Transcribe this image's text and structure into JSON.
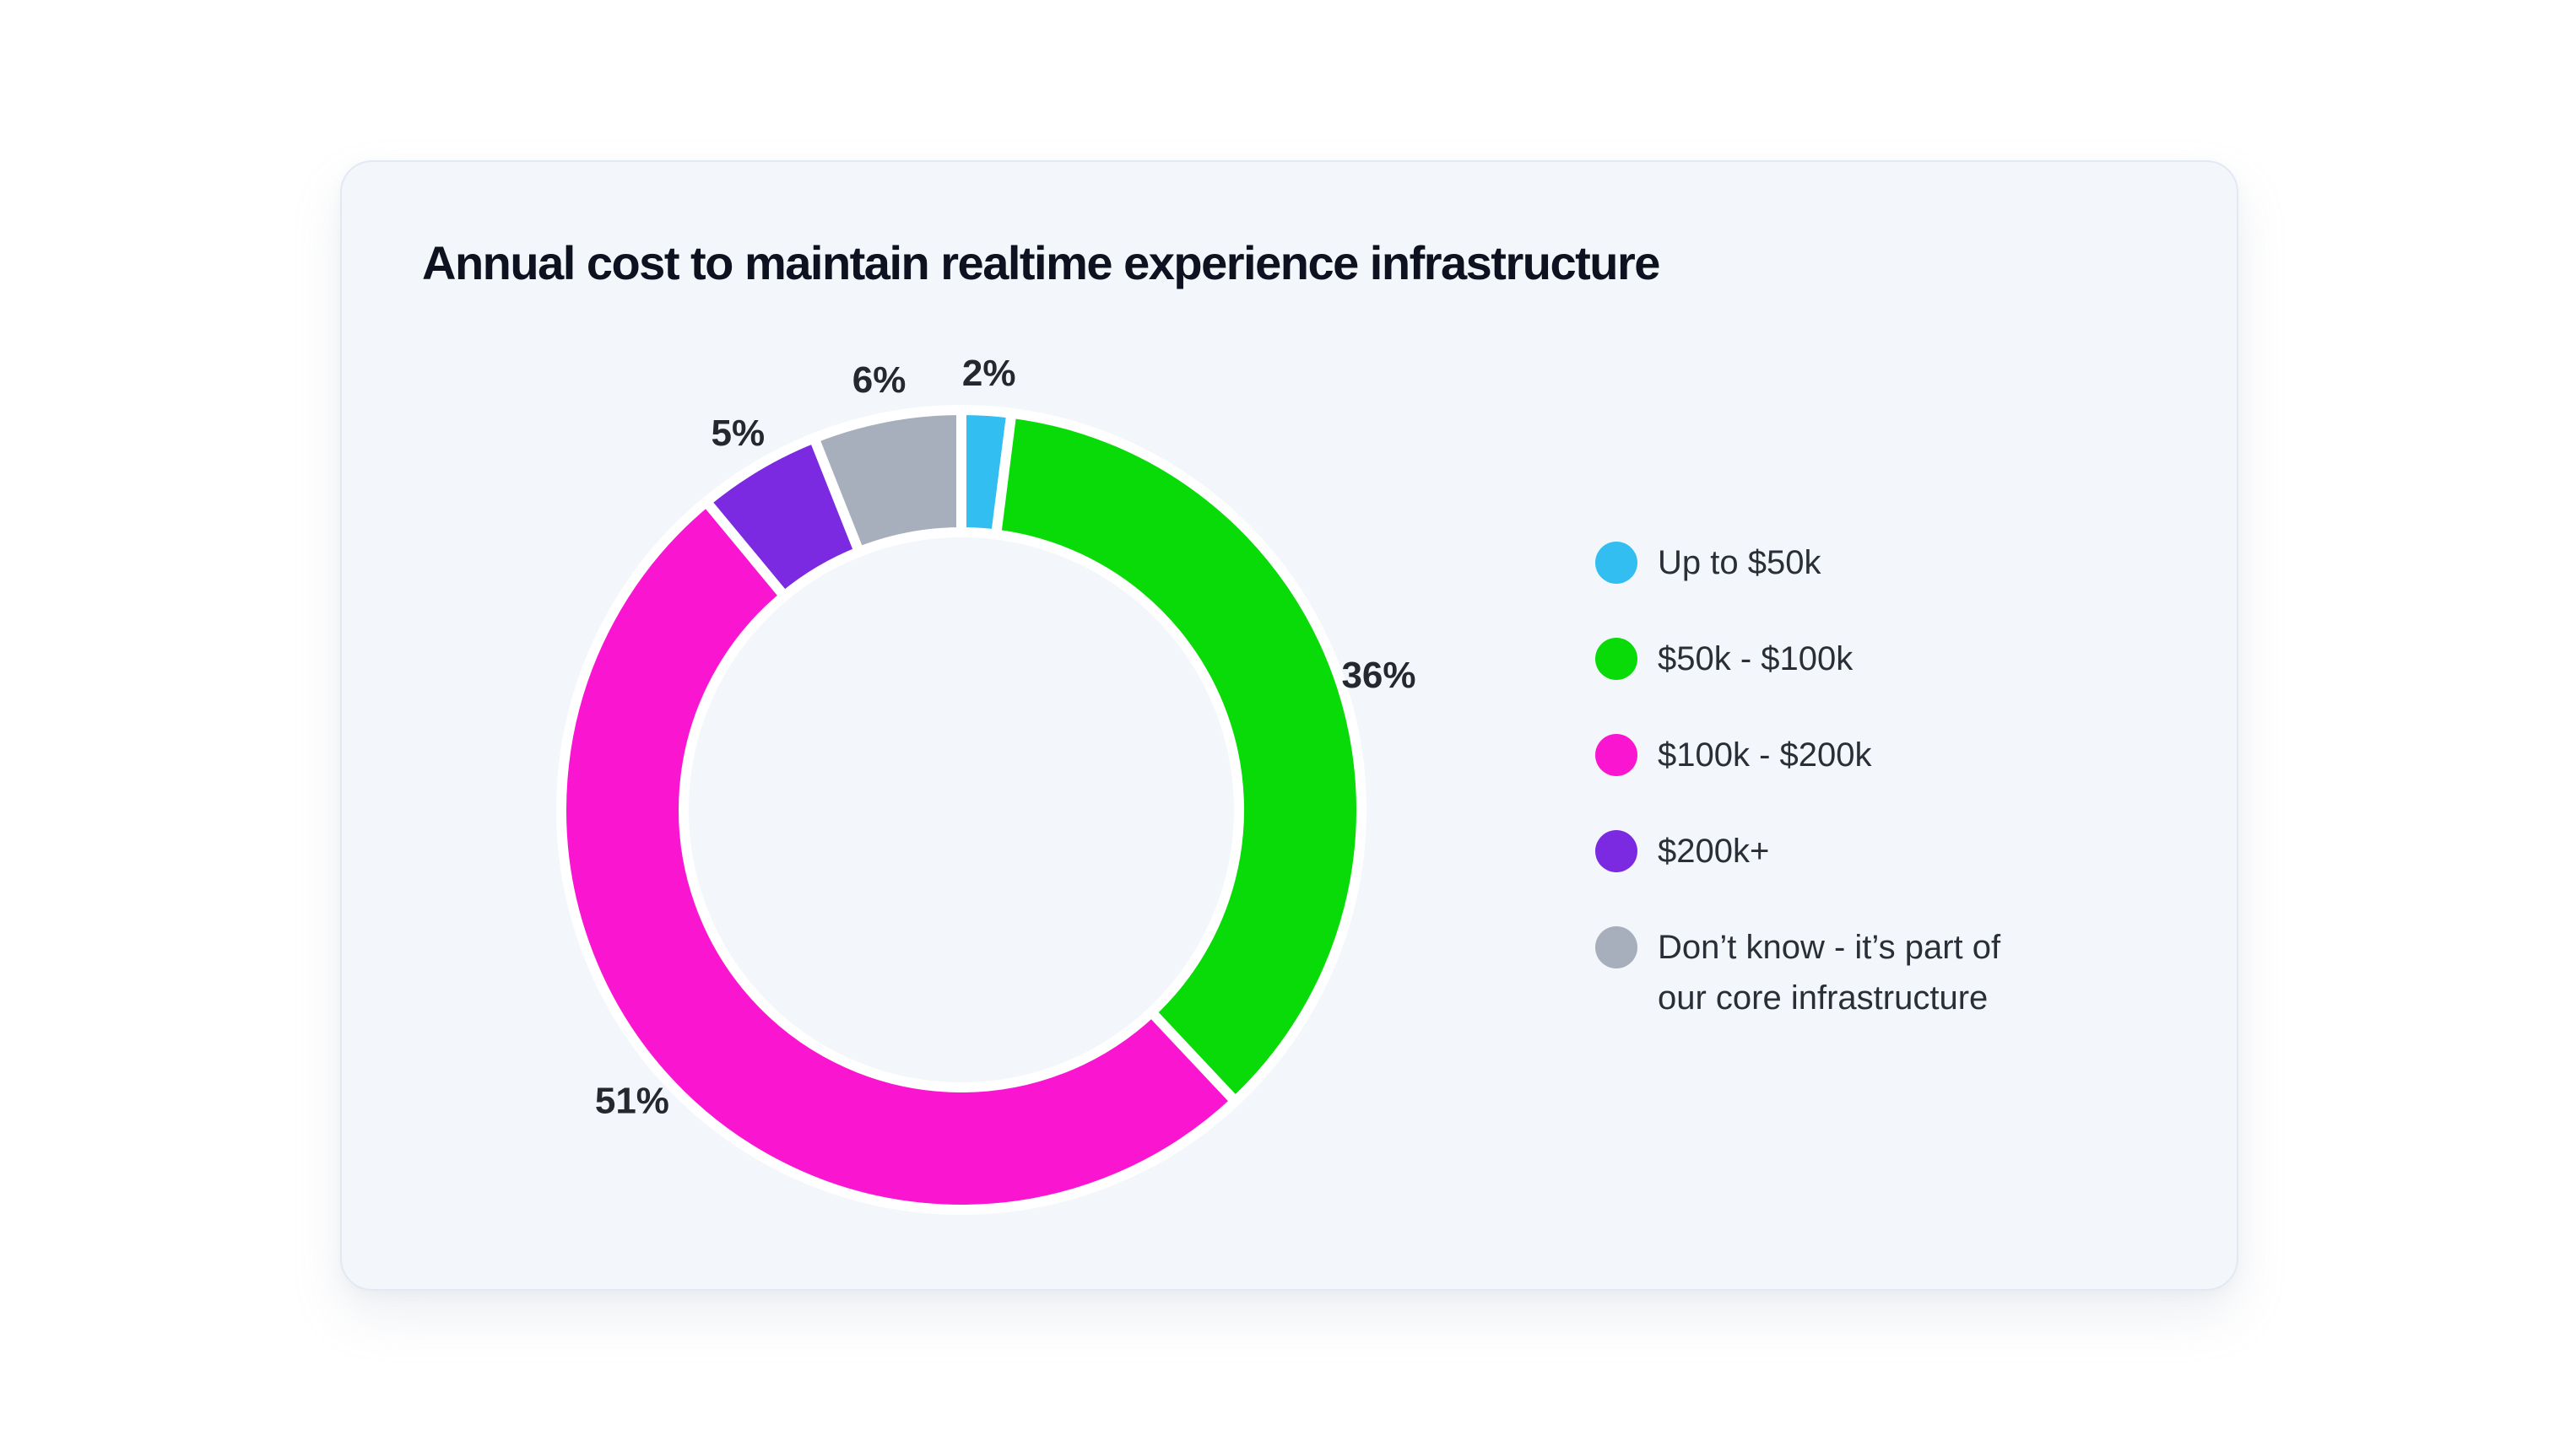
{
  "page_background": "#FFFFFF",
  "card": {
    "title": "Annual cost to maintain realtime experience infrastructure",
    "background": "#F3F6FA",
    "border_color": "#E3E9F2",
    "title_color": "#0E1220"
  },
  "chart_data": {
    "type": "pie",
    "subtype": "donut",
    "title": "Annual cost to maintain realtime experience infrastructure",
    "start_angle_deg": 0,
    "direction": "clockwise",
    "inner_radius_ratio": 0.71,
    "separator_color": "#FFFFFF",
    "label_color": "#25292F",
    "legend_position": "right",
    "legend_text_color": "#2A2F37",
    "categories": [
      "Up to $50k",
      "$50k - $100k",
      "$100k - $200k",
      "$200k+",
      "Don’t know - it’s part of our core infrastructure"
    ],
    "values": [
      2,
      36,
      51,
      5,
      6
    ],
    "segments": [
      {
        "label": "Up to $50k",
        "value_pct": 2,
        "display": "2%",
        "color": "#33BEF2",
        "legend_lines": [
          "Up to $50k"
        ]
      },
      {
        "label": "$50k - $100k",
        "value_pct": 36,
        "display": "36%",
        "color": "#09DB09",
        "legend_lines": [
          "$50k - $100k"
        ]
      },
      {
        "label": "$100k - $200k",
        "value_pct": 51,
        "display": "51%",
        "color": "#FA16D0",
        "legend_lines": [
          "$100k - $200k"
        ]
      },
      {
        "label": "$200k+",
        "value_pct": 5,
        "display": "5%",
        "color": "#7B2AE1",
        "legend_lines": [
          "$200k+"
        ]
      },
      {
        "label": "Don’t know - it’s part of our core infrastructure",
        "value_pct": 6,
        "display": "6%",
        "color": "#A7AFBC",
        "legend_lines": [
          "Don’t know - it’s part of",
          "our core infrastructure"
        ]
      }
    ]
  }
}
